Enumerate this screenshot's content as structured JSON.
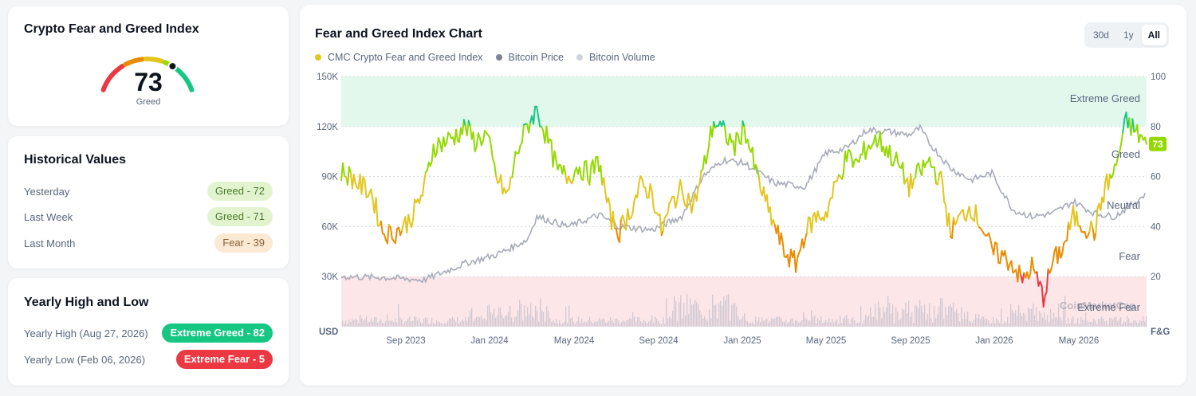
{
  "index_card": {
    "title": "Crypto Fear and Greed Index",
    "value": "73",
    "label": "Greed"
  },
  "historical": {
    "title": "Historical Values",
    "rows": [
      {
        "label": "Yesterday",
        "value": "Greed - 72",
        "sentiment": "greed"
      },
      {
        "label": "Last Week",
        "value": "Greed - 71",
        "sentiment": "greed"
      },
      {
        "label": "Last Month",
        "value": "Fear - 39",
        "sentiment": "fear"
      }
    ]
  },
  "yearly": {
    "title": "Yearly High and Low",
    "high_label": "Yearly High",
    "high_date": "(Aug 27, 2026)",
    "high_value": "Extreme Greed - 82",
    "low_label": "Yearly Low",
    "low_date": "(Feb 06, 2026)",
    "low_value": "Extreme Fear - 5"
  },
  "chart_panel": {
    "title": "Fear and Greed Index Chart",
    "range_tabs": [
      "30d",
      "1y",
      "All"
    ],
    "active_tab": "All",
    "legend": [
      {
        "label": "CMC Crypto Fear and Greed Index",
        "color": "#e3c51f"
      },
      {
        "label": "Bitcoin Price",
        "color": "#7e8394"
      },
      {
        "label": "Bitcoin Volume",
        "color": "#cfd2d8"
      }
    ],
    "current_badge": "73",
    "watermark": "CoinMarketCap"
  },
  "colors": {
    "extreme_greed": "#16c784",
    "greed": "#93d900",
    "neutral": "#e3c51f",
    "fear": "#ea8c00",
    "extreme_fear": "#ea3943",
    "price_line": "#a7abb9",
    "volume": "#c9c3cf"
  },
  "chart_data": {
    "type": "line",
    "x_tick_labels": [
      "Sep 2023",
      "Jan 2024",
      "May 2024",
      "Sep 2024",
      "Jan 2025",
      "May 2025",
      "Sep 2025",
      "Jan 2026",
      "May 2026"
    ],
    "left_axis": {
      "label": "USD",
      "ticks": [
        "30K",
        "60K",
        "90K",
        "120K",
        "150K"
      ],
      "range": [
        0,
        150000
      ]
    },
    "right_axis": {
      "label": "F&G",
      "ticks": [
        "20",
        "40",
        "60",
        "80",
        "100"
      ],
      "range": [
        0,
        100
      ]
    },
    "zones": [
      {
        "name": "Extreme Greed",
        "from": 80,
        "to": 100
      },
      {
        "name": "Greed",
        "from": 60,
        "to": 80
      },
      {
        "name": "Neutral",
        "from": 40,
        "to": 60
      },
      {
        "name": "Fear",
        "from": 20,
        "to": 40
      },
      {
        "name": "Extreme Fear",
        "from": 0,
        "to": 20
      }
    ],
    "x_range": [
      "2023-06-01",
      "2026-08-31"
    ],
    "series": [
      {
        "name": "CMC Crypto Fear and Greed Index",
        "axis": "right",
        "dates": [
          "2023-06-01",
          "2023-06-15",
          "2023-07-01",
          "2023-07-15",
          "2023-08-01",
          "2023-08-15",
          "2023-09-01",
          "2023-09-15",
          "2023-10-01",
          "2023-10-15",
          "2023-11-01",
          "2023-11-15",
          "2023-12-01",
          "2023-12-15",
          "2024-01-01",
          "2024-01-15",
          "2024-02-01",
          "2024-02-15",
          "2024-03-01",
          "2024-03-15",
          "2024-04-01",
          "2024-04-15",
          "2024-05-01",
          "2024-05-15",
          "2024-06-01",
          "2024-06-15",
          "2024-07-01",
          "2024-07-15",
          "2024-08-01",
          "2024-08-15",
          "2024-09-01",
          "2024-09-15",
          "2024-10-01",
          "2024-10-15",
          "2024-11-01",
          "2024-11-15",
          "2024-12-01",
          "2024-12-15",
          "2025-01-01",
          "2025-01-15",
          "2025-02-01",
          "2025-02-15",
          "2025-03-01",
          "2025-03-15",
          "2025-04-01",
          "2025-04-15",
          "2025-05-01",
          "2025-05-15",
          "2025-06-01",
          "2025-06-15",
          "2025-07-01",
          "2025-07-15",
          "2025-08-01",
          "2025-08-15",
          "2025-09-01",
          "2025-09-15",
          "2025-10-01",
          "2025-10-15",
          "2025-11-01",
          "2025-11-15",
          "2025-12-01",
          "2025-12-15",
          "2026-01-01",
          "2026-01-15",
          "2026-02-01",
          "2026-02-15",
          "2026-03-01",
          "2026-03-15",
          "2026-04-01",
          "2026-04-15",
          "2026-05-01",
          "2026-05-15",
          "2026-06-01",
          "2026-06-15",
          "2026-07-01",
          "2026-07-15",
          "2026-08-01",
          "2026-08-15",
          "2026-08-31"
        ],
        "values": [
          62,
          60,
          56,
          54,
          38,
          37,
          40,
          45,
          55,
          72,
          74,
          76,
          80,
          74,
          77,
          60,
          52,
          70,
          80,
          87,
          74,
          62,
          60,
          64,
          61,
          66,
          44,
          38,
          47,
          56,
          54,
          38,
          50,
          55,
          48,
          62,
          82,
          78,
          72,
          80,
          62,
          50,
          40,
          30,
          25,
          38,
          44,
          45,
          58,
          68,
          65,
          72,
          75,
          70,
          64,
          56,
          62,
          66,
          58,
          38,
          44,
          48,
          40,
          30,
          28,
          25,
          18,
          24,
          12,
          26,
          32,
          44,
          40,
          38,
          56,
          62,
          82,
          78,
          73
        ]
      },
      {
        "name": "Bitcoin Price",
        "axis": "left",
        "dates": [
          "2023-06-01",
          "2023-08-01",
          "2023-10-01",
          "2023-12-01",
          "2024-01-15",
          "2024-03-01",
          "2024-03-15",
          "2024-05-01",
          "2024-06-15",
          "2024-07-15",
          "2024-09-01",
          "2024-10-15",
          "2024-11-15",
          "2024-12-15",
          "2025-01-15",
          "2025-03-01",
          "2025-04-15",
          "2025-05-15",
          "2025-06-15",
          "2025-07-15",
          "2025-08-15",
          "2025-09-15",
          "2025-10-01",
          "2025-10-15",
          "2025-11-15",
          "2025-12-15",
          "2026-01-15",
          "2026-02-15",
          "2026-03-15",
          "2026-04-15",
          "2026-05-15",
          "2026-06-15",
          "2026-07-15",
          "2026-08-15",
          "2026-08-31"
        ],
        "values": [
          30000,
          29500,
          28000,
          38000,
          43000,
          52000,
          66000,
          60000,
          67000,
          60000,
          58000,
          66000,
          90000,
          100000,
          98000,
          86000,
          84000,
          104000,
          107000,
          118000,
          117000,
          115000,
          119000,
          110000,
          95000,
          88000,
          92000,
          70000,
          66000,
          68000,
          75000,
          68000,
          66000,
          75000,
          80000
        ]
      }
    ]
  }
}
